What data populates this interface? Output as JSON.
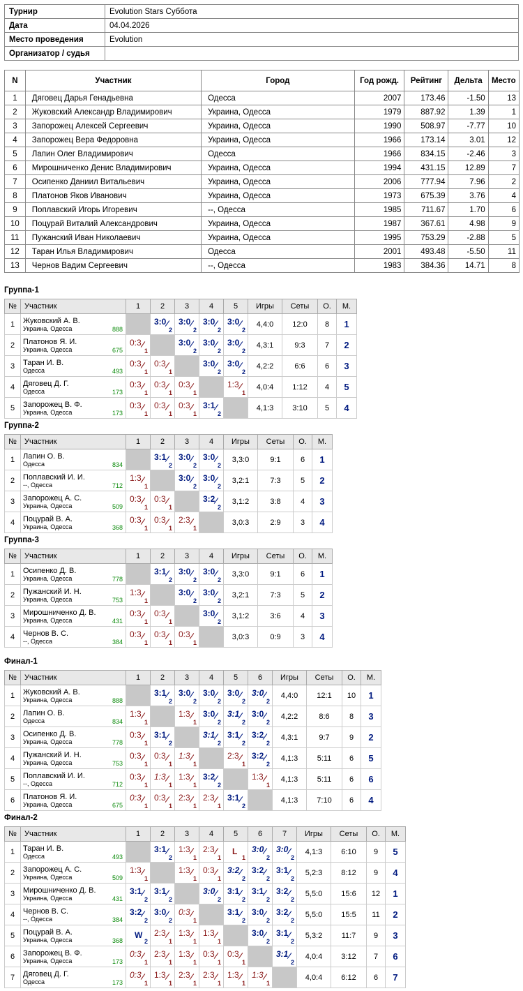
{
  "info": [
    {
      "k": "Турнир",
      "v": "Evolution Stars Суббота"
    },
    {
      "k": "Дата",
      "v": "04.04.2026"
    },
    {
      "k": "Место проведения",
      "v": "Evolution"
    },
    {
      "k": "Организатор / судья",
      "v": ""
    }
  ],
  "participants": {
    "headers": [
      "N",
      "Участник",
      "Город",
      "Год рожд.",
      "Рейтинг",
      "Дельта",
      "Место"
    ],
    "rows": [
      [
        "1",
        "Дяговец Дарья Генадьевна",
        "Одесса",
        "2007",
        "173.46",
        "-1.50",
        "13"
      ],
      [
        "2",
        "Жуковский Александр Владимирович",
        "Украина, Одесса",
        "1979",
        "887.92",
        "1.39",
        "1"
      ],
      [
        "3",
        "Запорожец Алексей Сергеевич",
        "Украина, Одесса",
        "1990",
        "508.97",
        "-7.77",
        "10"
      ],
      [
        "4",
        "Запорожец Вера Федоровна",
        "Украина, Одесса",
        "1966",
        "173.14",
        "3.01",
        "12"
      ],
      [
        "5",
        "Лапин Олег Владимирович",
        "Одесса",
        "1966",
        "834.15",
        "-2.46",
        "3"
      ],
      [
        "6",
        "Мирошниченко Денис Владимирович",
        "Украина, Одесса",
        "1994",
        "431.15",
        "12.89",
        "7"
      ],
      [
        "7",
        "Осипенко Даниил Витальевич",
        "Украина, Одесса",
        "2006",
        "777.94",
        "7.96",
        "2"
      ],
      [
        "8",
        "Платонов Яков Иванович",
        "Украина, Одесса",
        "1973",
        "675.39",
        "3.76",
        "4"
      ],
      [
        "9",
        "Поплавский Игорь Игоревич",
        "--, Одесса",
        "1985",
        "711.67",
        "1.70",
        "6"
      ],
      [
        "10",
        "Поцурай Виталий Александрович",
        "Украина, Одесса",
        "1987",
        "367.61",
        "4.98",
        "9"
      ],
      [
        "11",
        "Пужанский Иван Николаевич",
        "Украина, Одесса",
        "1995",
        "753.29",
        "-2.88",
        "5"
      ],
      [
        "12",
        "Таран Илья Владимирович",
        "Одесса",
        "2001",
        "493.48",
        "-5.50",
        "11"
      ],
      [
        "13",
        "Чернов Вадим Сергеевич",
        "--, Одесса",
        "1983",
        "384.36",
        "14.71",
        "8"
      ]
    ]
  },
  "group_headers": {
    "no": "№",
    "name": "Участник",
    "games": "Игры",
    "sets": "Сеты",
    "points": "О.",
    "place": "М."
  },
  "groups": [
    {
      "title": "Группа-1",
      "players": [
        {
          "name": "Жуковский А. В.",
          "city": "Украина, Одесса",
          "rating": "888",
          "cells": [
            "X",
            "3:0|2|w",
            "3:0|2|w",
            "3:0|2|w",
            "3:0|2|w"
          ],
          "games": "4,4:0",
          "sets": "12:0",
          "points": "8",
          "place": "1"
        },
        {
          "name": "Платонов Я. И.",
          "city": "Украина, Одесса",
          "rating": "675",
          "cells": [
            "0:3|1|l",
            "X",
            "3:0|2|w",
            "3:0|2|w",
            "3:0|2|w"
          ],
          "games": "4,3:1",
          "sets": "9:3",
          "points": "7",
          "place": "2"
        },
        {
          "name": "Таран И. В.",
          "city": "Одесса",
          "rating": "493",
          "cells": [
            "0:3|1|l",
            "0:3|1|l",
            "X",
            "3:0|2|w",
            "3:0|2|w"
          ],
          "games": "4,2:2",
          "sets": "6:6",
          "points": "6",
          "place": "3"
        },
        {
          "name": "Дяговец Д. Г.",
          "city": "Одесса",
          "rating": "173",
          "cells": [
            "0:3|1|l",
            "0:3|1|l",
            "0:3|1|l",
            "X",
            "1:3|1|l"
          ],
          "games": "4,0:4",
          "sets": "1:12",
          "points": "4",
          "place": "5"
        },
        {
          "name": "Запорожец В. Ф.",
          "city": "Украина, Одесса",
          "rating": "173",
          "cells": [
            "0:3|1|l",
            "0:3|1|l",
            "0:3|1|l",
            "3:1|2|w",
            "X"
          ],
          "games": "4,1:3",
          "sets": "3:10",
          "points": "5",
          "place": "4"
        }
      ]
    },
    {
      "title": "Группа-2",
      "players": [
        {
          "name": "Лапин О. В.",
          "city": "Одесса",
          "rating": "834",
          "cells": [
            "X",
            "3:1|2|w",
            "3:0|2|w",
            "3:0|2|w"
          ],
          "games": "3,3:0",
          "sets": "9:1",
          "points": "6",
          "place": "1"
        },
        {
          "name": "Поплавский И. И.",
          "city": "--, Одесса",
          "rating": "712",
          "cells": [
            "1:3|1|l",
            "X",
            "3:0|2|w",
            "3:0|2|w"
          ],
          "games": "3,2:1",
          "sets": "7:3",
          "points": "5",
          "place": "2"
        },
        {
          "name": "Запорожец А. С.",
          "city": "Украина, Одесса",
          "rating": "509",
          "cells": [
            "0:3|1|l",
            "0:3|1|l",
            "X",
            "3:2|2|w"
          ],
          "games": "3,1:2",
          "sets": "3:8",
          "points": "4",
          "place": "3"
        },
        {
          "name": "Поцурай В. А.",
          "city": "Украина, Одесса",
          "rating": "368",
          "cells": [
            "0:3|1|l",
            "0:3|1|l",
            "2:3|1|l",
            "X"
          ],
          "games": "3,0:3",
          "sets": "2:9",
          "points": "3",
          "place": "4"
        }
      ]
    },
    {
      "title": "Группа-3",
      "players": [
        {
          "name": "Осипенко Д. В.",
          "city": "Украина, Одесса",
          "rating": "778",
          "cells": [
            "X",
            "3:1|2|w",
            "3:0|2|w",
            "3:0|2|w"
          ],
          "games": "3,3:0",
          "sets": "9:1",
          "points": "6",
          "place": "1"
        },
        {
          "name": "Пужанский И. Н.",
          "city": "Украина, Одесса",
          "rating": "753",
          "cells": [
            "1:3|1|l",
            "X",
            "3:0|2|w",
            "3:0|2|w"
          ],
          "games": "3,2:1",
          "sets": "7:3",
          "points": "5",
          "place": "2"
        },
        {
          "name": "Мирошниченко Д. В.",
          "city": "Украина, Одесса",
          "rating": "431",
          "cells": [
            "0:3|1|l",
            "0:3|1|l",
            "X",
            "3:0|2|w"
          ],
          "games": "3,1:2",
          "sets": "3:6",
          "points": "4",
          "place": "3"
        },
        {
          "name": "Чернов В. С.",
          "city": "--, Одесса",
          "rating": "384",
          "cells": [
            "0:3|1|l",
            "0:3|1|l",
            "0:3|1|l",
            "X"
          ],
          "games": "3,0:3",
          "sets": "0:9",
          "points": "3",
          "place": "4"
        }
      ]
    },
    {
      "title": "Финал-1",
      "players": [
        {
          "name": "Жуковский А. В.",
          "city": "Украина, Одесса",
          "rating": "888",
          "cells": [
            "X",
            "3:1|2|w",
            "3:0|2|w",
            "3:0|2|w",
            "3:0|2|w",
            "3:0|2|wi"
          ],
          "games": "4,4:0",
          "sets": "12:1",
          "points": "10",
          "place": "1"
        },
        {
          "name": "Лапин О. В.",
          "city": "Одесса",
          "rating": "834",
          "cells": [
            "1:3|1|l",
            "X",
            "1:3|1|l",
            "3:0|2|w",
            "3:1|2|wi",
            "3:0|2|w"
          ],
          "games": "4,2:2",
          "sets": "8:6",
          "points": "8",
          "place": "3"
        },
        {
          "name": "Осипенко Д. В.",
          "city": "Украина, Одесса",
          "rating": "778",
          "cells": [
            "0:3|1|l",
            "3:1|2|w",
            "X",
            "3:1|2|wi",
            "3:1|2|w",
            "3:2|2|w"
          ],
          "games": "4,3:1",
          "sets": "9:7",
          "points": "9",
          "place": "2"
        },
        {
          "name": "Пужанский И. Н.",
          "city": "Украина, Одесса",
          "rating": "753",
          "cells": [
            "0:3|1|l",
            "0:3|1|l",
            "1:3|1|li",
            "X",
            "2:3|1|l",
            "3:2|2|w"
          ],
          "games": "4,1:3",
          "sets": "5:11",
          "points": "6",
          "place": "5"
        },
        {
          "name": "Поплавский И. И.",
          "city": "--, Одесса",
          "rating": "712",
          "cells": [
            "0:3|1|l",
            "1:3|1|li",
            "1:3|1|l",
            "3:2|2|w",
            "X",
            "1:3|1|l"
          ],
          "games": "4,1:3",
          "sets": "5:11",
          "points": "6",
          "place": "6"
        },
        {
          "name": "Платонов Я. И.",
          "city": "Украина, Одесса",
          "rating": "675",
          "cells": [
            "0:3|1|li",
            "0:3|1|l",
            "2:3|1|l",
            "2:3|1|l",
            "3:1|2|w",
            "X"
          ],
          "games": "4,1:3",
          "sets": "7:10",
          "points": "6",
          "place": "4"
        }
      ]
    },
    {
      "title": "Финал-2",
      "players": [
        {
          "name": "Таран И. В.",
          "city": "Одесса",
          "rating": "493",
          "cells": [
            "X",
            "3:1|2|w",
            "1:3|1|l",
            "2:3|1|l",
            "L|1|lb",
            "3:0|2|wi",
            "3:0|2|wi"
          ],
          "games": "4,1:3",
          "sets": "6:10",
          "points": "9",
          "place": "5"
        },
        {
          "name": "Запорожец А. С.",
          "city": "Украина, Одесса",
          "rating": "509",
          "cells": [
            "1:3|1|l",
            "X",
            "1:3|1|l",
            "0:3|1|l",
            "3:2|2|wi",
            "3:2|2|w",
            "3:1|2|w"
          ],
          "games": "5,2:3",
          "sets": "8:12",
          "points": "9",
          "place": "4"
        },
        {
          "name": "Мирошниченко Д. В.",
          "city": "Украина, Одесса",
          "rating": "431",
          "cells": [
            "3:1|2|w",
            "3:1|2|w",
            "X",
            "3:0|2|wi",
            "3:1|2|w",
            "3:1|2|w",
            "3:2|2|w"
          ],
          "games": "5,5:0",
          "sets": "15:6",
          "points": "12",
          "place": "1"
        },
        {
          "name": "Чернов В. С.",
          "city": "--, Одесса",
          "rating": "384",
          "cells": [
            "3:2|2|w",
            "3:0|2|w",
            "0:3|1|li",
            "X",
            "3:1|2|w",
            "3:0|2|w",
            "3:2|2|w"
          ],
          "games": "5,5:0",
          "sets": "15:5",
          "points": "11",
          "place": "2"
        },
        {
          "name": "Поцурай В. А.",
          "city": "Украина, Одесса",
          "rating": "368",
          "cells": [
            "W|2|wb",
            "2:3|1|l",
            "1:3|1|l",
            "1:3|1|l",
            "X",
            "3:0|2|w",
            "3:1|2|w"
          ],
          "games": "5,3:2",
          "sets": "11:7",
          "points": "9",
          "place": "3"
        },
        {
          "name": "Запорожец В. Ф.",
          "city": "Украина, Одесса",
          "rating": "173",
          "cells": [
            "0:3|1|li",
            "2:3|1|l",
            "1:3|1|l",
            "0:3|1|l",
            "0:3|1|l",
            "X",
            "3:1|2|wi"
          ],
          "games": "4,0:4",
          "sets": "3:12",
          "points": "7",
          "place": "6"
        },
        {
          "name": "Дяговец Д. Г.",
          "city": "Одесса",
          "rating": "173",
          "cells": [
            "0:3|1|li",
            "1:3|1|l",
            "2:3|1|l",
            "2:3|1|l",
            "1:3|1|l",
            "1:3|1|li",
            "X"
          ],
          "games": "4,0:4",
          "sets": "6:12",
          "points": "6",
          "place": "7"
        }
      ]
    }
  ]
}
